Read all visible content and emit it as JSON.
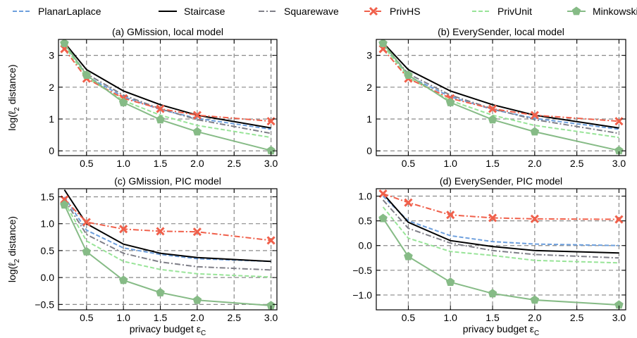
{
  "chart_data": {
    "type": "line",
    "legend": {
      "position": "top",
      "entries": [
        "PlanarLaplace",
        "Staircase",
        "Squarewave",
        "PrivHS",
        "PrivUnit",
        "Minkowski"
      ]
    },
    "series_style": {
      "PlanarLaplace": {
        "color": "#6d9fdd",
        "dash": "6,3",
        "marker": "none"
      },
      "Staircase": {
        "color": "#000000",
        "dash": "",
        "marker": "none"
      },
      "Squarewave": {
        "color": "#7f7f88",
        "dash": "8,3,2,3",
        "marker": "none"
      },
      "PrivHS": {
        "color": "#f0604b",
        "dash": "8,3,2,3",
        "marker": "x"
      },
      "PrivUnit": {
        "color": "#98e498",
        "dash": "6,3",
        "marker": "none"
      },
      "Minkowski": {
        "color": "#86bb86",
        "dash": "",
        "marker": "pentagon"
      }
    },
    "x": [
      0.2,
      0.5,
      1.0,
      1.5,
      2.0,
      3.0
    ],
    "xlabel": "privacy budget ε",
    "xlabel_subscript": "C",
    "ylabel": "log(ℓ",
    "ylabel_subscript": "2",
    "ylabel_suffix": " distance)",
    "charts": [
      {
        "title": "(a) GMission, local model",
        "xlim": [
          0.12,
          3.08
        ],
        "ylim": [
          -0.15,
          3.5
        ],
        "xticks": [
          0.5,
          1.0,
          1.5,
          2.0,
          2.5,
          3.0
        ],
        "xtick_labels": [
          "0.5",
          "1.0",
          "1.5",
          "2.0",
          "2.5",
          "3.0"
        ],
        "yticks": [
          0,
          1,
          2,
          3
        ],
        "ytick_labels": [
          "0",
          "1",
          "2",
          "3"
        ],
        "show_ylabel": true,
        "show_xlabel": false,
        "series": [
          {
            "name": "PlanarLaplace",
            "values": [
              3.3,
              2.35,
              1.7,
              1.3,
              1.02,
              0.68
            ]
          },
          {
            "name": "Staircase",
            "values": [
              3.4,
              2.55,
              1.88,
              1.45,
              1.12,
              0.72
            ]
          },
          {
            "name": "Squarewave",
            "values": [
              3.35,
              2.42,
              1.75,
              1.32,
              0.98,
              0.55
            ]
          },
          {
            "name": "PrivHS",
            "values": [
              3.2,
              2.27,
              1.65,
              1.32,
              1.12,
              0.93
            ]
          },
          {
            "name": "PrivUnit",
            "values": [
              3.3,
              2.3,
              1.58,
              1.12,
              0.8,
              0.42
            ]
          },
          {
            "name": "Minkowski",
            "values": [
              3.38,
              2.38,
              1.52,
              0.98,
              0.6,
              0.01
            ]
          }
        ]
      },
      {
        "title": "(b) EverySender, local model",
        "xlim": [
          0.12,
          3.08
        ],
        "ylim": [
          -0.15,
          3.5
        ],
        "xticks": [
          0.5,
          1.0,
          1.5,
          2.0,
          2.5,
          3.0
        ],
        "xtick_labels": [
          "0.5",
          "1.0",
          "1.5",
          "2.0",
          "2.5",
          "3.0"
        ],
        "yticks": [
          0,
          1,
          2,
          3
        ],
        "ytick_labels": [
          "0",
          "1",
          "2",
          "3"
        ],
        "show_ylabel": false,
        "show_xlabel": false,
        "series": [
          {
            "name": "PlanarLaplace",
            "values": [
              3.3,
              2.35,
              1.7,
              1.3,
              1.02,
              0.68
            ]
          },
          {
            "name": "Staircase",
            "values": [
              3.4,
              2.55,
              1.88,
              1.45,
              1.12,
              0.72
            ]
          },
          {
            "name": "Squarewave",
            "values": [
              3.35,
              2.42,
              1.75,
              1.32,
              0.98,
              0.55
            ]
          },
          {
            "name": "PrivHS",
            "values": [
              3.2,
              2.27,
              1.65,
              1.32,
              1.12,
              0.93
            ]
          },
          {
            "name": "PrivUnit",
            "values": [
              3.3,
              2.3,
              1.58,
              1.12,
              0.8,
              0.42
            ]
          },
          {
            "name": "Minkowski",
            "values": [
              3.38,
              2.38,
              1.52,
              0.98,
              0.6,
              0.01
            ]
          }
        ]
      },
      {
        "title": "(c) GMission, PIC model",
        "xlim": [
          0.12,
          3.08
        ],
        "ylim": [
          -0.6,
          1.65
        ],
        "xticks": [
          0.5,
          1.0,
          1.5,
          2.0,
          2.5,
          3.0
        ],
        "xtick_labels": [
          "0.5",
          "1.0",
          "1.5",
          "2.0",
          "2.5",
          "3.0"
        ],
        "yticks": [
          -0.5,
          0.0,
          0.5,
          1.0,
          1.5
        ],
        "ytick_labels": [
          "−0.5",
          "0.0",
          "0.5",
          "1.0",
          "1.5"
        ],
        "show_ylabel": true,
        "show_xlabel": true,
        "series": [
          {
            "name": "PlanarLaplace",
            "values": [
              1.5,
              0.88,
              0.55,
              0.43,
              0.35,
              0.3
            ]
          },
          {
            "name": "Staircase",
            "values": [
              1.63,
              1.0,
              0.62,
              0.45,
              0.37,
              0.3
            ]
          },
          {
            "name": "Squarewave",
            "values": [
              1.45,
              0.8,
              0.45,
              0.29,
              0.2,
              0.14
            ]
          },
          {
            "name": "PrivHS",
            "values": [
              1.45,
              1.03,
              0.9,
              0.86,
              0.85,
              0.69
            ]
          },
          {
            "name": "PrivUnit",
            "values": [
              1.4,
              0.68,
              0.3,
              0.15,
              0.07,
              0.01
            ]
          },
          {
            "name": "Minkowski",
            "values": [
              1.35,
              0.48,
              -0.05,
              -0.28,
              -0.42,
              -0.52
            ]
          }
        ]
      },
      {
        "title": "(d) EverySender, PIC model",
        "xlim": [
          0.12,
          3.08
        ],
        "ylim": [
          -1.3,
          1.15
        ],
        "xticks": [
          0.5,
          1.0,
          1.5,
          2.0,
          2.5,
          3.0
        ],
        "xtick_labels": [
          "0.5",
          "1.0",
          "1.5",
          "2.0",
          "2.5",
          "3.0"
        ],
        "yticks": [
          -1.0,
          -0.5,
          0.0,
          0.5,
          1.0
        ],
        "ytick_labels": [
          "−1.0",
          "−0.5",
          "0.0",
          "0.5",
          "1.0"
        ],
        "show_ylabel": false,
        "show_xlabel": true,
        "series": [
          {
            "name": "PlanarLaplace",
            "values": [
              1.0,
              0.5,
              0.2,
              0.08,
              0.03,
              0.0
            ]
          },
          {
            "name": "Staircase",
            "values": [
              1.05,
              0.47,
              0.1,
              -0.02,
              -0.1,
              -0.15
            ]
          },
          {
            "name": "Squarewave",
            "values": [
              0.92,
              0.35,
              0.05,
              -0.1,
              -0.18,
              -0.25
            ]
          },
          {
            "name": "PrivHS",
            "values": [
              1.05,
              0.87,
              0.62,
              0.56,
              0.54,
              0.53
            ]
          },
          {
            "name": "PrivUnit",
            "values": [
              0.78,
              0.15,
              -0.12,
              -0.2,
              -0.3,
              -0.35
            ]
          },
          {
            "name": "Minkowski",
            "values": [
              0.55,
              -0.22,
              -0.74,
              -0.97,
              -1.1,
              -1.2
            ]
          }
        ]
      }
    ]
  }
}
